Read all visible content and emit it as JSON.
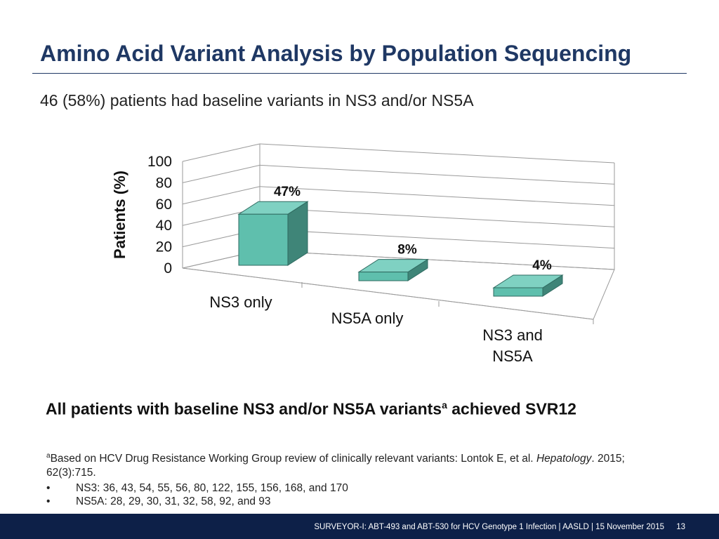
{
  "slide": {
    "title": "Amino Acid Variant Analysis by Population Sequencing",
    "subtitle": "46 (58%) patients had baseline variants in NS3 and/or NS5A",
    "conclusion_main": "All patients with baseline NS3 and/or NS5A variants",
    "conclusion_sup": "a",
    "conclusion_end": " achieved SVR12",
    "footnote_sup": "a",
    "footnote_text": "Based on HCV Drug Resistance Working Group review of clinically relevant variants: Lontok E, et al. ",
    "footnote_journal": "Hepatology",
    "footnote_rest": ". 2015; 62(3):715.",
    "bullets": [
      "NS3: 36, 43, 54, 55, 56, 80, 122, 155, 156, 168, and 170",
      "NS5A: 28, 29, 30, 31, 32, 58, 92, and 93"
    ],
    "bullet_marker": "•",
    "footer_text": "SURVEYOR-I: ABT-493 and ABT-530 for HCV Genotype 1 Infection   | AASLD | 15 November 2015",
    "page_number": "13"
  },
  "chart_data": {
    "type": "bar",
    "style": "3d-column",
    "categories": [
      "NS3 only",
      "NS5A only",
      "NS3 and NS5A"
    ],
    "category_lines": [
      [
        "NS3 only"
      ],
      [
        "NS5A only"
      ],
      [
        "NS3 and",
        "NS5A"
      ]
    ],
    "values": [
      47,
      8,
      4
    ],
    "data_labels": [
      "47%",
      "8%",
      "4%"
    ],
    "ylabel": "Patients (%)",
    "ylim": [
      0,
      100
    ],
    "yticks": [
      0,
      20,
      40,
      60,
      80,
      100
    ],
    "grid": true,
    "bar_color": "#5fbfad",
    "bar_side_color": "#3f8578",
    "bar_top_color": "#7fd1c2"
  }
}
